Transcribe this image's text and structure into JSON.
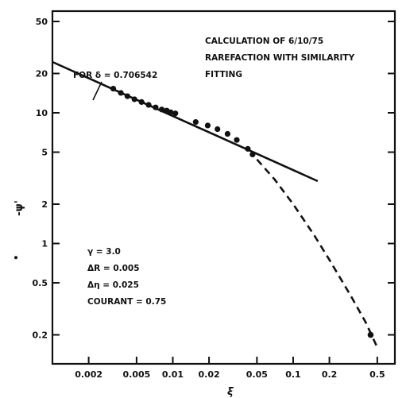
{
  "chart_data": {
    "type": "scatter",
    "x_scale": "log",
    "y_scale": "log",
    "xlim": [
      0.001,
      0.7
    ],
    "ylim": [
      0.12,
      60
    ],
    "xlabel": "ξ",
    "ylabel": "-ψ'",
    "x_ticks": [
      0.002,
      0.005,
      0.01,
      0.02,
      0.05,
      0.1,
      0.2,
      0.5
    ],
    "x_tick_labels": [
      "0.002",
      "0.005",
      "0.01",
      "0.02",
      "0.05",
      "0.1",
      "0.2",
      "0.5"
    ],
    "y_ticks": [
      0.2,
      0.5,
      1,
      2,
      5,
      10,
      20,
      50
    ],
    "y_tick_labels": [
      "0.2",
      "0.5",
      "1",
      "2",
      "5",
      "10",
      "20",
      "50"
    ],
    "annotation_title": [
      "CALCULATION OF 6/10/75",
      "RAREFACTION WITH SIMILARITY",
      "FITTING"
    ],
    "fit_label": "FOR δ = 0.706542",
    "params": [
      "γ = 3.0",
      "ΔR = 0.005",
      "Δη = 0.025",
      "COURANT = 0.75"
    ],
    "series": [
      {
        "style": "points",
        "x": [
          0.0032,
          0.0037,
          0.0042,
          0.0048,
          0.0055,
          0.0063,
          0.0072,
          0.0081,
          0.0089,
          0.0096,
          0.0105,
          0.0155,
          0.0195,
          0.0235,
          0.0285,
          0.034,
          0.042,
          0.046
        ],
        "y": [
          15.3,
          14.2,
          13.4,
          12.7,
          12.1,
          11.5,
          11.0,
          10.6,
          10.4,
          10.1,
          9.9,
          8.5,
          8.0,
          7.5,
          6.9,
          6.2,
          5.3,
          4.8
        ],
        "extra_points": {
          "x": [
            0.44
          ],
          "y": [
            0.2
          ]
        }
      },
      {
        "style": "solid-line",
        "x": [
          0.001,
          0.16
        ],
        "y": [
          24.5,
          3.0
        ]
      },
      {
        "style": "dashed-line",
        "x": [
          0.05,
          0.07,
          0.1,
          0.15,
          0.2,
          0.3,
          0.4,
          0.5
        ],
        "y": [
          4.4,
          3.1,
          2.0,
          1.15,
          0.75,
          0.4,
          0.25,
          0.16
        ]
      }
    ]
  }
}
